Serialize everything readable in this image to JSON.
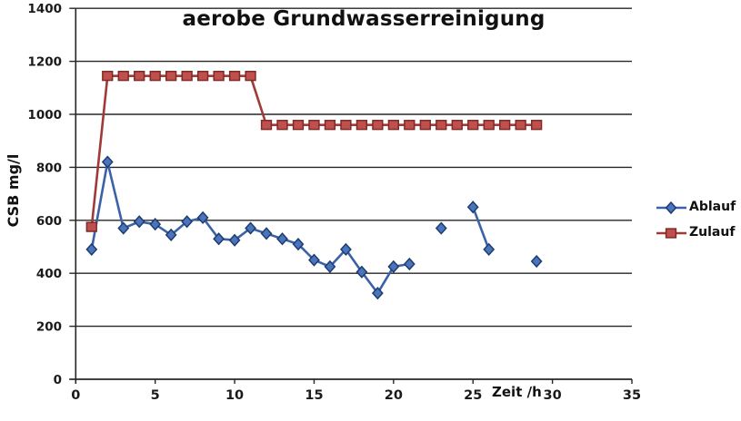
{
  "chart_data": {
    "type": "line",
    "title": "aerobe Grundwasserreinigung",
    "xlabel": "Zeit /h",
    "ylabel": "CSB mg/l",
    "xlim": [
      0,
      35
    ],
    "ylim": [
      0,
      1400
    ],
    "x_ticks": [
      0,
      5,
      10,
      15,
      20,
      25,
      30,
      35
    ],
    "y_ticks": [
      0,
      200,
      400,
      600,
      800,
      1000,
      1200,
      1400
    ],
    "grid": "horizontal-only",
    "legend_position": "right-middle",
    "background": "#ffffff",
    "axis_color": "#262626",
    "grid_color": "#262626",
    "text_color": "#1a1a1a",
    "series": [
      {
        "name": "Ablauf",
        "marker": "diamond",
        "line_color": "#3B62A8",
        "marker_fill": "#4A74BC",
        "marker_edge": "#1E3C6E",
        "segments": [
          [
            [
              1,
              490
            ],
            [
              2,
              820
            ],
            [
              3,
              570
            ],
            [
              4,
              595
            ],
            [
              5,
              585
            ],
            [
              6,
              545
            ],
            [
              7,
              595
            ],
            [
              8,
              610
            ],
            [
              9,
              530
            ],
            [
              10,
              525
            ],
            [
              11,
              570
            ],
            [
              12,
              550
            ],
            [
              13,
              530
            ],
            [
              14,
              510
            ],
            [
              15,
              450
            ],
            [
              16,
              425
            ],
            [
              17,
              490
            ],
            [
              18,
              405
            ],
            [
              19,
              325
            ],
            [
              20,
              425
            ],
            [
              21,
              435
            ]
          ],
          [
            [
              23,
              570
            ]
          ],
          [
            [
              25,
              650
            ],
            [
              26,
              490
            ]
          ],
          [
            [
              29,
              445
            ]
          ]
        ]
      },
      {
        "name": "Zulauf",
        "marker": "square",
        "line_color": "#9E3B38",
        "marker_fill": "#C0504D",
        "marker_edge": "#7E2A26",
        "segments": [
          [
            [
              1,
              575
            ],
            [
              2,
              1145
            ],
            [
              3,
              1145
            ],
            [
              4,
              1145
            ],
            [
              5,
              1145
            ],
            [
              6,
              1145
            ],
            [
              7,
              1145
            ],
            [
              8,
              1145
            ],
            [
              9,
              1145
            ],
            [
              10,
              1145
            ],
            [
              11,
              1145
            ],
            [
              12,
              960
            ],
            [
              13,
              960
            ],
            [
              14,
              960
            ],
            [
              15,
              960
            ],
            [
              16,
              960
            ],
            [
              17,
              960
            ],
            [
              18,
              960
            ],
            [
              19,
              960
            ],
            [
              20,
              960
            ],
            [
              21,
              960
            ],
            [
              22,
              960
            ],
            [
              23,
              960
            ],
            [
              24,
              960
            ],
            [
              25,
              960
            ],
            [
              26,
              960
            ],
            [
              27,
              960
            ],
            [
              28,
              960
            ],
            [
              29,
              960
            ]
          ]
        ]
      }
    ]
  }
}
